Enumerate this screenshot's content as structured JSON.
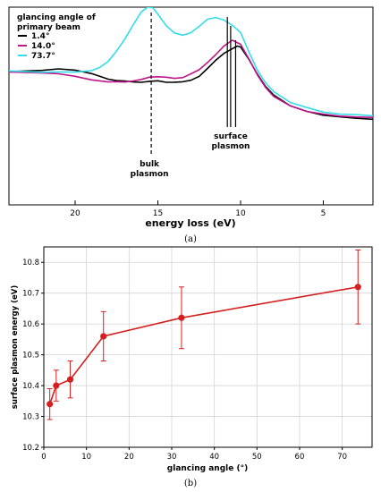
{
  "chart_data": [
    {
      "type": "line",
      "caption": "(a)",
      "xlabel": "energy loss (eV)",
      "ylabel": "",
      "x_direction": "reversed",
      "xlim": [
        24,
        2
      ],
      "xticks": [
        20,
        15,
        10,
        5
      ],
      "y_ticks_shown": false,
      "legend": {
        "title_lines": [
          "glancing angle of",
          "primary beam"
        ],
        "placement": "top-left"
      },
      "series": [
        {
          "name": "1.4°",
          "color": "#000000",
          "x": [
            24,
            22,
            21,
            20,
            19,
            18.5,
            18,
            17.5,
            17,
            16.5,
            16,
            15.5,
            15,
            14.5,
            14,
            13.5,
            13,
            12.5,
            12,
            11.5,
            11,
            10.5,
            10.2,
            10,
            9.5,
            9,
            8.5,
            8,
            7,
            6,
            5,
            4,
            3,
            2
          ],
          "values": [
            0.5,
            0.52,
            0.53,
            0.52,
            0.48,
            0.45,
            0.42,
            0.4,
            0.39,
            0.38,
            0.38,
            0.39,
            0.39,
            0.38,
            0.38,
            0.39,
            0.41,
            0.45,
            0.54,
            0.63,
            0.71,
            0.76,
            0.79,
            0.77,
            0.63,
            0.47,
            0.33,
            0.23,
            0.11,
            0.05,
            0.02,
            0.0,
            -0.02,
            -0.03
          ]
        },
        {
          "name": "14.0°",
          "color": "#c0168a",
          "x": [
            24,
            22,
            21,
            20,
            19,
            18,
            17.5,
            17,
            16.5,
            16,
            15.5,
            15,
            14.5,
            14,
            13.5,
            13,
            12.5,
            12,
            11.5,
            11,
            10.5,
            10,
            9.5,
            9,
            8.5,
            8,
            7,
            6,
            5,
            4,
            3,
            2
          ],
          "values": [
            0.5,
            0.48,
            0.47,
            0.44,
            0.4,
            0.38,
            0.38,
            0.38,
            0.4,
            0.42,
            0.44,
            0.45,
            0.44,
            0.43,
            0.44,
            0.47,
            0.52,
            0.6,
            0.69,
            0.78,
            0.85,
            0.8,
            0.64,
            0.47,
            0.33,
            0.23,
            0.12,
            0.06,
            0.03,
            0.01,
            -0.01,
            -0.02
          ]
        },
        {
          "name": "73.7°",
          "color": "#33ddea",
          "x": [
            24,
            22,
            21,
            20,
            19,
            18.5,
            18,
            17.5,
            17,
            16.5,
            16,
            15.6,
            15.3,
            15,
            14.5,
            14,
            13.5,
            13,
            12.5,
            12,
            11.5,
            11,
            10.5,
            10,
            9.5,
            9,
            8.5,
            8,
            7,
            6,
            5,
            4,
            3,
            2
          ],
          "values": [
            0.5,
            0.5,
            0.5,
            0.5,
            0.51,
            0.55,
            0.62,
            0.73,
            0.86,
            1.02,
            1.16,
            1.22,
            1.21,
            1.14,
            1.01,
            0.93,
            0.91,
            0.94,
            1.01,
            1.09,
            1.11,
            1.08,
            1.02,
            0.93,
            0.72,
            0.52,
            0.37,
            0.27,
            0.15,
            0.09,
            0.05,
            0.03,
            0.02,
            0.01
          ]
        }
      ],
      "annotations": [
        {
          "text_lines": [
            "bulk",
            "plasmon"
          ],
          "x": 15.4,
          "line_style": "dashed"
        },
        {
          "text_lines": [
            "surface",
            "plasmon"
          ],
          "x_lines": [
            10.8,
            10.6,
            10.3
          ],
          "line_style": "solid"
        }
      ],
      "grid": false
    },
    {
      "type": "scatter",
      "caption": "(b)",
      "xlabel": "glancing angle (°)",
      "ylabel": "surface plasmon energy (eV)",
      "xlim": [
        0,
        77
      ],
      "ylim": [
        10.2,
        10.85
      ],
      "xticks": [
        0,
        10,
        20,
        30,
        40,
        50,
        60,
        70
      ],
      "yticks": [
        "10.2",
        "10.3",
        "10.4",
        "10.5",
        "10.6",
        "10.7",
        "10.8"
      ],
      "grid": true,
      "color": "#d42020",
      "series": [
        {
          "x": [
            1.4,
            2.9,
            6.2,
            14.0,
            32.3,
            73.7
          ],
          "values": [
            10.34,
            10.4,
            10.42,
            10.56,
            10.62,
            10.72
          ],
          "err": [
            0.05,
            0.05,
            0.06,
            0.08,
            0.1,
            0.12
          ]
        }
      ]
    }
  ]
}
